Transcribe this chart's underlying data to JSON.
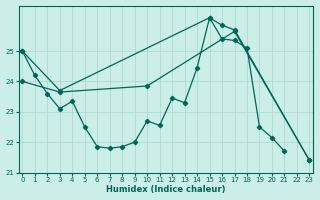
{
  "xlabel": "Humidex (Indice chaleur)",
  "bg_color": "#cceee8",
  "grid_color": "#aad4cc",
  "line_color": "#006655",
  "marker": "D",
  "marker_size": 2.2,
  "line_width": 0.9,
  "xlim": [
    -0.3,
    23.3
  ],
  "ylim": [
    21.0,
    26.5
  ],
  "yticks": [
    21,
    22,
    23,
    24,
    25
  ],
  "xticks": [
    0,
    1,
    2,
    3,
    4,
    5,
    6,
    7,
    8,
    9,
    10,
    11,
    12,
    13,
    14,
    15,
    16,
    17,
    18,
    19,
    20,
    21,
    22,
    23
  ],
  "xlabel_fontsize": 6,
  "tick_fontsize": 5,
  "line1_x": [
    0,
    1,
    2,
    3,
    4,
    5,
    6,
    7,
    8,
    9,
    10,
    11,
    12,
    13,
    14,
    15,
    16,
    17,
    18,
    19,
    20,
    21,
    22,
    23
  ],
  "line1_y": [
    25.0,
    24.2,
    23.6,
    23.1,
    23.35,
    22.5,
    21.85,
    21.8,
    21.85,
    22.0,
    22.7,
    22.55,
    23.45,
    23.3,
    24.45,
    26.1,
    25.4,
    25.35,
    25.1,
    22.5,
    22.15,
    21.7,
    null,
    null
  ],
  "line2_x": [
    0,
    3,
    15,
    16,
    17,
    23
  ],
  "line2_y": [
    25.0,
    23.7,
    26.1,
    25.85,
    25.7,
    21.4
  ],
  "line3_x": [
    0,
    3,
    10,
    17,
    23
  ],
  "line3_y": [
    24.0,
    23.65,
    23.85,
    25.65,
    21.4
  ]
}
